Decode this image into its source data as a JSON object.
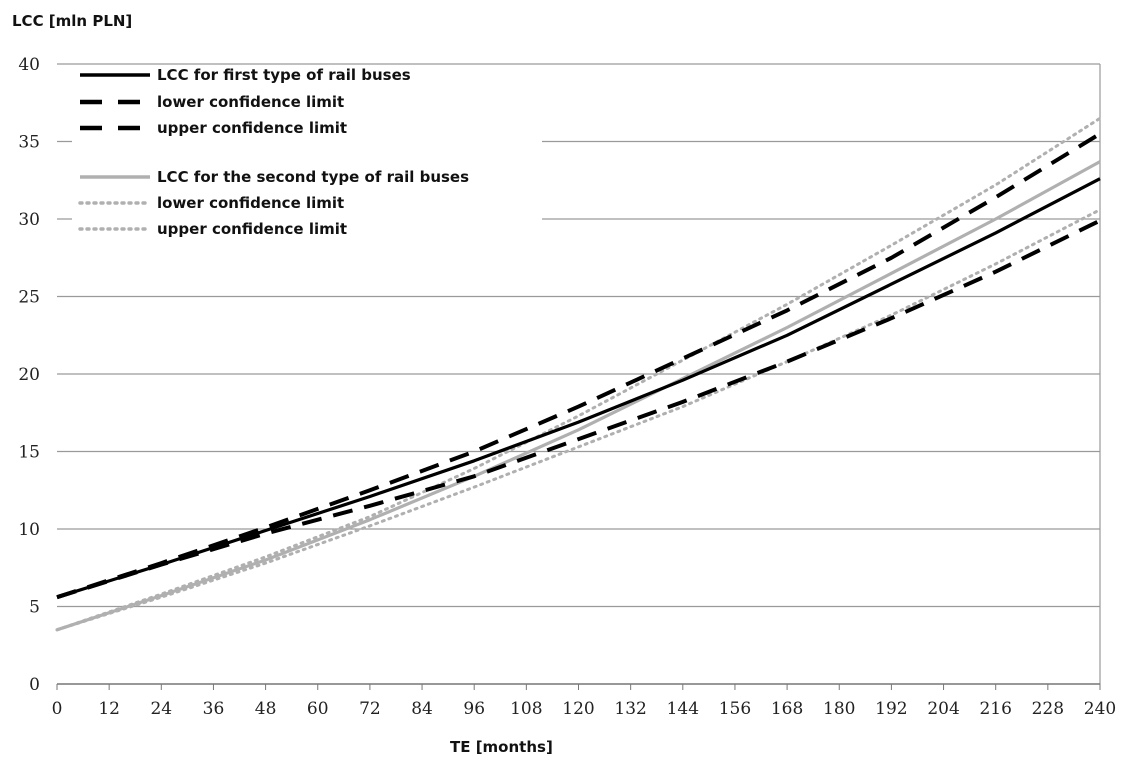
{
  "chart_data": {
    "type": "line",
    "xlabel": "TE [months]",
    "ylabel": "LCC [mln PLN]",
    "xlim": [
      0,
      240
    ],
    "ylim": [
      0,
      40
    ],
    "xticks": [
      0,
      12,
      24,
      36,
      48,
      60,
      72,
      84,
      96,
      108,
      120,
      132,
      144,
      156,
      168,
      180,
      192,
      204,
      216,
      228,
      240
    ],
    "yticks": [
      0,
      5,
      10,
      15,
      20,
      25,
      30,
      35,
      40
    ],
    "grid": "horizontal",
    "legend_position": "top-left",
    "series": [
      {
        "name": "LCC for first type of rail buses",
        "color": "#000000",
        "style": "solid",
        "x": [
          0,
          24,
          48,
          72,
          96,
          120,
          144,
          168,
          192,
          216,
          240
        ],
        "y": [
          5.6,
          7.7,
          9.9,
          12.1,
          14.4,
          16.9,
          19.6,
          22.5,
          25.8,
          29.1,
          32.6
        ]
      },
      {
        "name": "lower confidence limit",
        "color": "#000000",
        "style": "dash",
        "x": [
          0,
          24,
          48,
          72,
          96,
          120,
          144,
          168,
          192,
          216,
          240
        ],
        "y": [
          5.6,
          7.7,
          9.7,
          11.5,
          13.4,
          15.8,
          18.2,
          20.8,
          23.6,
          26.6,
          29.9
        ]
      },
      {
        "name": "upper confidence limit",
        "color": "#000000",
        "style": "dash",
        "x": [
          0,
          24,
          48,
          72,
          96,
          120,
          144,
          168,
          192,
          216,
          240
        ],
        "y": [
          5.6,
          7.8,
          10.1,
          12.5,
          15.0,
          17.9,
          21.0,
          24.1,
          27.5,
          31.4,
          35.5
        ]
      },
      {
        "name": "LCC for the second type of rail buses",
        "color": "#b0b0b0",
        "style": "solid",
        "x": [
          0,
          24,
          48,
          72,
          96,
          120,
          144,
          168,
          192,
          216,
          240
        ],
        "y": [
          3.5,
          5.7,
          8.0,
          10.6,
          13.4,
          16.4,
          19.7,
          23.0,
          26.5,
          30.0,
          33.7
        ]
      },
      {
        "name": "lower confidence limit",
        "color": "#b0b0b0",
        "style": "dot",
        "x": [
          0,
          24,
          48,
          72,
          96,
          120,
          144,
          168,
          192,
          216,
          240
        ],
        "y": [
          3.5,
          5.6,
          7.8,
          10.2,
          12.7,
          15.3,
          17.9,
          20.8,
          23.8,
          27.1,
          30.6
        ]
      },
      {
        "name": "upper confidence limit",
        "color": "#b0b0b0",
        "style": "dot",
        "x": [
          0,
          24,
          48,
          72,
          96,
          120,
          144,
          168,
          192,
          216,
          240
        ],
        "y": [
          3.5,
          5.8,
          8.2,
          10.8,
          13.9,
          17.3,
          20.9,
          24.5,
          28.3,
          32.2,
          36.5
        ]
      }
    ]
  }
}
